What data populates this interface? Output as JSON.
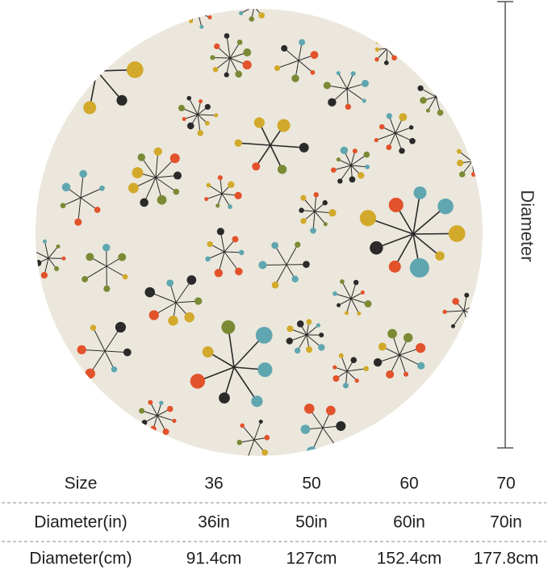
{
  "diagram": {
    "label": "Diameter"
  },
  "table": {
    "rows": [
      [
        "Size",
        "36",
        "50",
        "60",
        "70"
      ],
      [
        "Diameter(in)",
        "36in",
        "50in",
        "60in",
        "70in"
      ],
      [
        "Diameter(cm)",
        "91.4cm",
        "127cm",
        "152.4cm",
        "177.8cm"
      ]
    ]
  }
}
